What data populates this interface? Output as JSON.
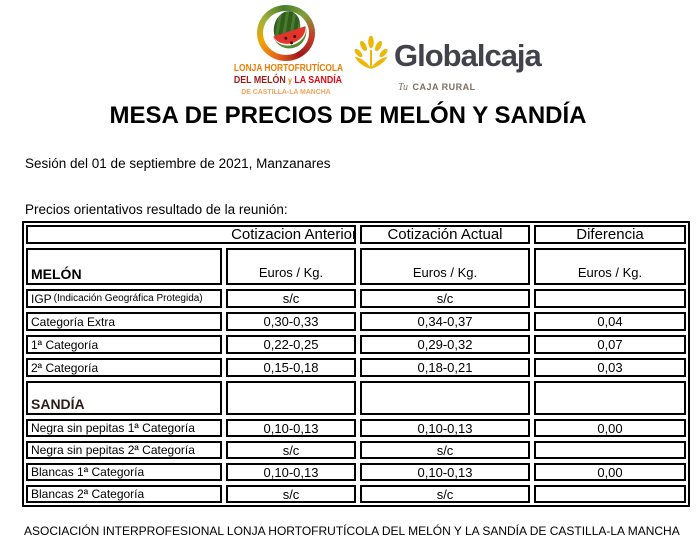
{
  "header": {
    "left_logo": {
      "line1": "LONJA HORTOFRUTÍCOLA",
      "line2_a": "DEL MELÓN",
      "line2_b": "y",
      "line2_c": "LA SANDÍA",
      "line3": "DE CASTILLA-LA MANCHA",
      "colors": {
        "orange": "#e87e04",
        "dark_red": "#9e1b1b",
        "red": "#e30613"
      }
    },
    "right_logo": {
      "brand": "Globalcaja",
      "tagline_script": "Tu",
      "tagline": "CAJA RURAL",
      "colors": {
        "gold": "#edb709",
        "dark_gray": "#42424c"
      }
    }
  },
  "title": "MESA DE PRECIOS DE MELÓN Y SANDÍA",
  "session_line": "Sesión del 01 de septiembre de 2021, Manzanares",
  "intro_line": "Precios orientativos resultado de la reunión:",
  "table": {
    "columns": [
      "",
      "Cotizacion Anterior",
      "Cotización Actual",
      "Diferencia"
    ],
    "sections": [
      {
        "name": "MELÓN",
        "unit_cells": [
          "Euros / Kg.",
          "Euros / Kg.",
          "Euros / Kg."
        ],
        "rows": [
          {
            "label": "IGP",
            "note": "(Indicación Geográfica Protegida)",
            "anterior": "s/c",
            "actual": "s/c",
            "diferencia": ""
          },
          {
            "label": "Categoría Extra",
            "note": "",
            "anterior": "0,30-0,33",
            "actual": "0,34-0,37",
            "diferencia": "0,04"
          },
          {
            "label": "1ª Categoría",
            "note": "",
            "anterior": "0,22-0,25",
            "actual": "0,29-0,32",
            "diferencia": "0,07"
          },
          {
            "label": "2ª Categoría",
            "note": "",
            "anterior": "0,15-0,18",
            "actual": "0,18-0,21",
            "diferencia": "0,03"
          }
        ]
      },
      {
        "name": "SANDÍA",
        "unit_cells": [
          "",
          "",
          ""
        ],
        "rows": [
          {
            "label": "Negra sin pepitas 1ª Categoría",
            "note": "",
            "anterior": "0,10-0,13",
            "actual": "0,10-0,13",
            "diferencia": "0,00"
          },
          {
            "label": "Negra sin pepitas 2ª Categoría",
            "note": "",
            "anterior": "s/c",
            "actual": "s/c",
            "diferencia": ""
          },
          {
            "label": "Blancas 1ª Categoría",
            "note": "",
            "anterior": "0,10-0,13",
            "actual": "0,10-0,13",
            "diferencia": "0,00"
          },
          {
            "label": "Blancas 2ª Categoría",
            "note": "",
            "anterior": "s/c",
            "actual": "s/c",
            "diferencia": ""
          }
        ]
      }
    ]
  },
  "footer": "ASOCIACIÓN INTERPROFESIONAL LONJA HORTOFRUTÍCOLA DEL MELÓN Y LA SANDÍA DE CASTILLA-LA MANCHA"
}
